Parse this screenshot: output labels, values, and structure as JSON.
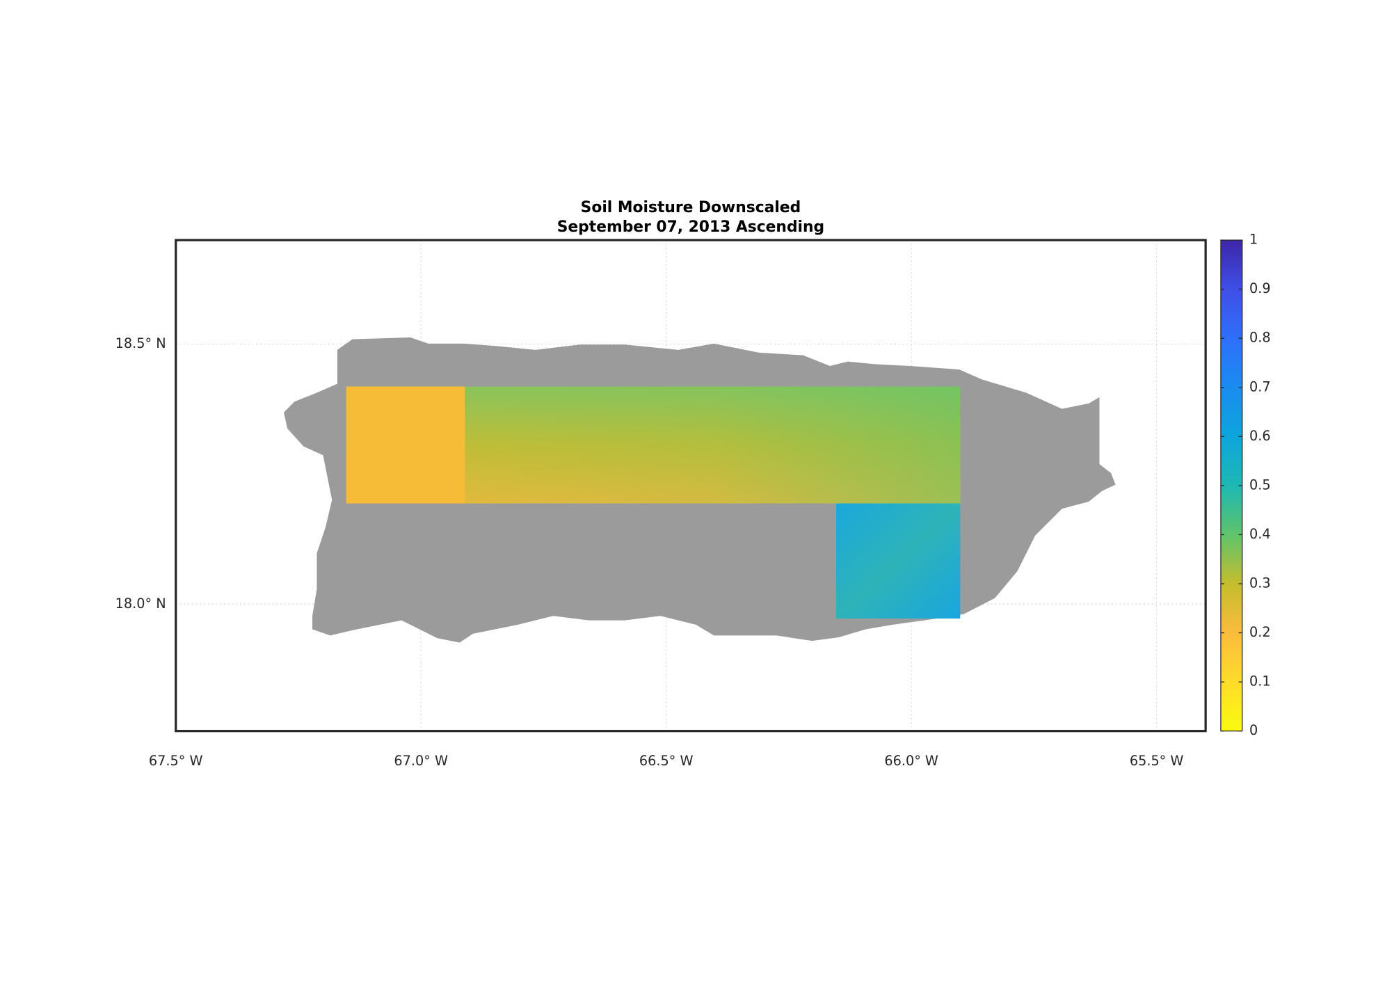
{
  "chart_data": {
    "type": "map",
    "title": "Soil Moisture Downscaled",
    "subtitle": "September 07, 2013 Ascending",
    "xlim": [
      -67.5,
      -65.4
    ],
    "ylim": [
      17.756,
      18.7
    ],
    "xticks": [
      {
        "value": -67.5,
        "label": "67.5° W"
      },
      {
        "value": -67.0,
        "label": "67.0° W"
      },
      {
        "value": -66.5,
        "label": "66.5° W"
      },
      {
        "value": -66.0,
        "label": "66.0° W"
      },
      {
        "value": -65.5,
        "label": "65.5° W"
      }
    ],
    "yticks": [
      {
        "value": 18.0,
        "label": "18.0° N"
      },
      {
        "value": 18.5,
        "label": "18.5° N"
      }
    ],
    "grid": true,
    "colorbar": {
      "lim": [
        0,
        1
      ],
      "ticks": [
        0,
        0.1,
        0.2,
        0.3,
        0.4,
        0.5,
        0.6,
        0.7,
        0.8,
        0.9,
        1
      ]
    }
  }
}
